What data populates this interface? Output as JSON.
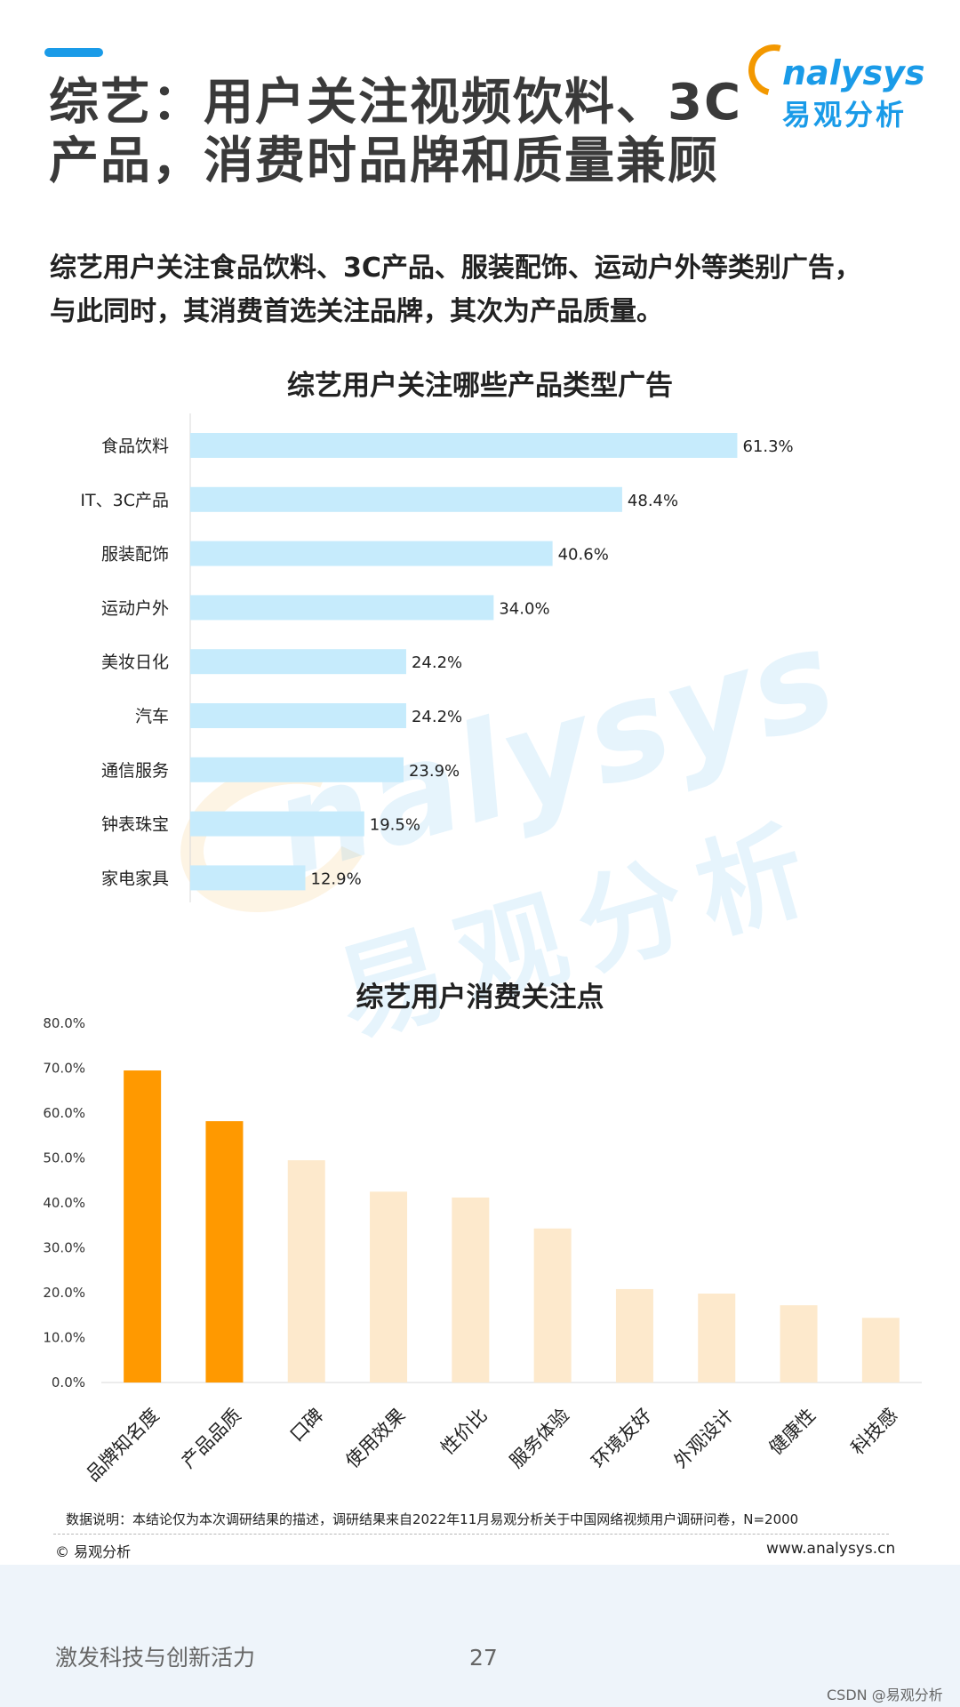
{
  "header": {
    "title_line1": "综艺：用户关注视频饮料、3C",
    "title_line2": "产品，消费时品牌和质量兼顾",
    "logo_text": "nalysys",
    "logo_cn": "易观分析",
    "brand_color": "#1a9be8",
    "accent_color": "#f39800"
  },
  "intro": {
    "line1": "综艺用户关注食品饮料、3C产品、服装配饰、运动户外等类别广告，",
    "line2": "与此同时，其消费首选关注品牌，其次为产品质量。"
  },
  "watermark": {
    "en": "nalysys",
    "cn": "易观分析"
  },
  "chart_data": [
    {
      "type": "bar",
      "orientation": "horizontal",
      "title": "综艺用户关注哪些产品类型广告",
      "categories": [
        "食品饮料",
        "IT、3C产品",
        "服装配饰",
        "运动户外",
        "美妆日化",
        "汽车",
        "通信服务",
        "钟表珠宝",
        "家电家具"
      ],
      "values": [
        61.3,
        48.4,
        40.6,
        34.0,
        24.2,
        24.2,
        23.9,
        19.5,
        12.9
      ],
      "value_labels": [
        "61.3%",
        "48.4%",
        "40.6%",
        "34.0%",
        "24.2%",
        "24.2%",
        "23.9%",
        "19.5%",
        "12.9%"
      ],
      "unit": "%",
      "xlim": [
        0,
        70
      ],
      "bar_color": "#c6ebfc",
      "grid": false
    },
    {
      "type": "bar",
      "orientation": "vertical",
      "title": "综艺用户消费关注点",
      "categories": [
        "品牌知名度",
        "产品品质",
        "口碑",
        "使用效果",
        "性价比",
        "服务体验",
        "环境友好",
        "外观设计",
        "健康性",
        "科技感"
      ],
      "values": [
        69.5,
        58.2,
        49.5,
        42.5,
        41.2,
        34.3,
        20.8,
        19.8,
        17.2,
        14.4
      ],
      "highlight_count": 2,
      "highlight_color": "#ff9900",
      "bar_color": "#fde9cc",
      "ylim": [
        0,
        80
      ],
      "yticks": [
        "0.0%",
        "10.0%",
        "20.0%",
        "30.0%",
        "40.0%",
        "50.0%",
        "60.0%",
        "70.0%",
        "80.0%"
      ],
      "grid": false
    }
  ],
  "footer": {
    "note": "数据说明：本结论仅为本次调研结果的描述，调研结果来自2022年11月易观分析关于中国网络视频用户调研问卷，N=2000",
    "copyright": "© 易观分析",
    "website": "www.analysys.cn",
    "slogan": "激发科技与创新活力",
    "page_number": "27",
    "csdn_mark": "CSDN @易观分析"
  }
}
